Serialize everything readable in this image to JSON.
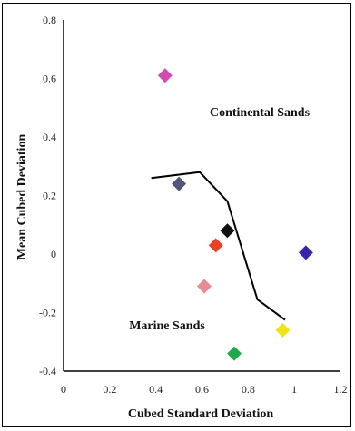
{
  "chart_data": {
    "type": "scatter",
    "xlabel": "Cubed Standard Deviation",
    "ylabel": "Mean Cubed Deviation",
    "xlim": [
      0,
      1.2
    ],
    "ylim": [
      -0.4,
      0.8
    ],
    "x_ticks": [
      "0",
      "0.2",
      "0.4",
      "0.6",
      "0.8",
      "1",
      "1.2"
    ],
    "y_ticks": [
      "0.8",
      "0.6",
      "0.4",
      "0.2",
      "0",
      "-0.2",
      "-0.4"
    ],
    "marker": "diamond",
    "points": [
      {
        "x": 0.44,
        "y": 0.61,
        "color": "#d24bb0"
      },
      {
        "x": 0.5,
        "y": 0.24,
        "color": "#55557a"
      },
      {
        "x": 0.71,
        "y": 0.08,
        "color": "#111111"
      },
      {
        "x": 0.66,
        "y": 0.03,
        "color": "#e8402a"
      },
      {
        "x": 1.05,
        "y": 0.005,
        "color": "#3a23a8"
      },
      {
        "x": 0.61,
        "y": -0.11,
        "color": "#e88a92"
      },
      {
        "x": 0.95,
        "y": -0.26,
        "color": "#f2e21a"
      },
      {
        "x": 0.74,
        "y": -0.34,
        "color": "#1faa4a"
      }
    ],
    "boundary_line": {
      "x": [
        0.38,
        0.59,
        0.71,
        0.84,
        0.96
      ],
      "y": [
        0.26,
        0.28,
        0.18,
        -0.155,
        -0.225
      ],
      "color": "#000000"
    },
    "annotations": {
      "continental": "Continental Sands",
      "marine": "Marine Sands"
    }
  }
}
